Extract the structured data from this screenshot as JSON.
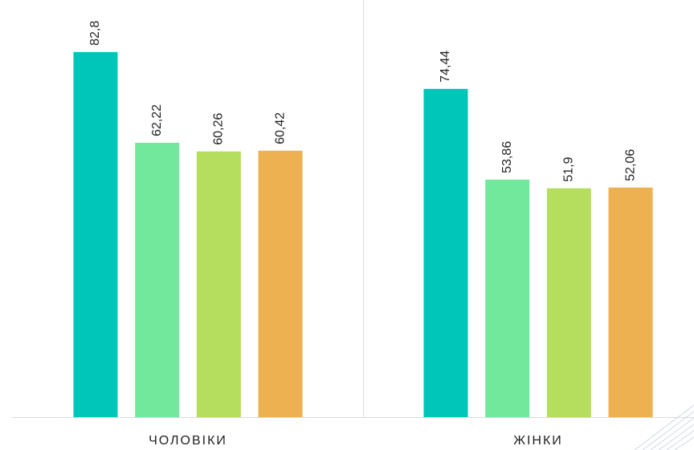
{
  "chart_data": {
    "type": "bar",
    "categories": [
      "ЧОЛОВІКИ",
      "ЖІНКИ"
    ],
    "series": [
      {
        "color": "#00c5b9",
        "values": [
          82.8,
          74.44
        ],
        "value_labels": [
          "82,8",
          "74,44"
        ]
      },
      {
        "color": "#72e89d",
        "values": [
          62.22,
          53.86
        ],
        "value_labels": [
          "62,22",
          "53,86"
        ]
      },
      {
        "color": "#b5de5f",
        "values": [
          60.26,
          51.9
        ],
        "value_labels": [
          "60,26",
          "51,9"
        ]
      },
      {
        "color": "#edb152",
        "values": [
          60.42,
          52.06
        ],
        "value_labels": [
          "60,42",
          "52,06"
        ]
      }
    ],
    "ylim": [
      0,
      94.6
    ]
  }
}
